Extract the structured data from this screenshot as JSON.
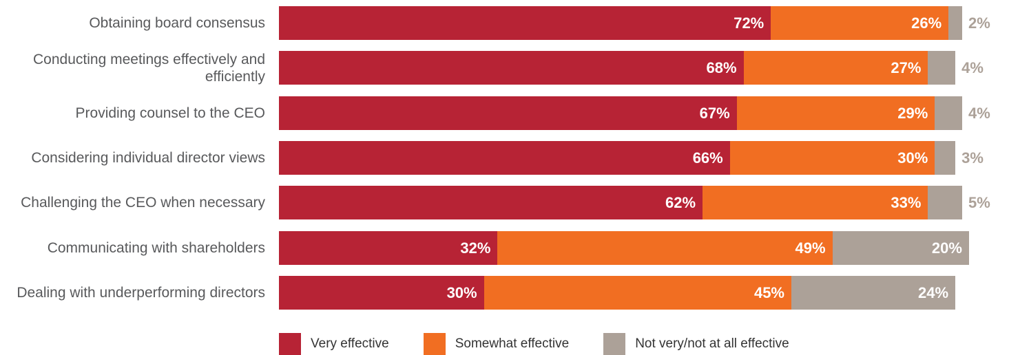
{
  "chart_data": {
    "type": "bar",
    "orientation": "horizontal",
    "stacked": true,
    "categories": [
      "Obtaining board consensus",
      "Conducting meetings effectively and efficiently",
      "Providing counsel to the CEO",
      "Considering individual director views",
      "Challenging the CEO when necessary",
      "Communicating with shareholders",
      "Dealing with underperforming directors"
    ],
    "series": [
      {
        "name": "Very effective",
        "color": "#b72335",
        "values": [
          72,
          68,
          67,
          66,
          62,
          32,
          30
        ]
      },
      {
        "name": "Somewhat effective",
        "color": "#f16e22",
        "values": [
          26,
          27,
          29,
          30,
          33,
          49,
          45
        ]
      },
      {
        "name": "Not very/not at all effective",
        "color": "#aca198",
        "values": [
          2,
          4,
          4,
          3,
          5,
          20,
          24
        ]
      }
    ],
    "value_suffix": "%",
    "legend_position": "bottom",
    "grid": false
  }
}
